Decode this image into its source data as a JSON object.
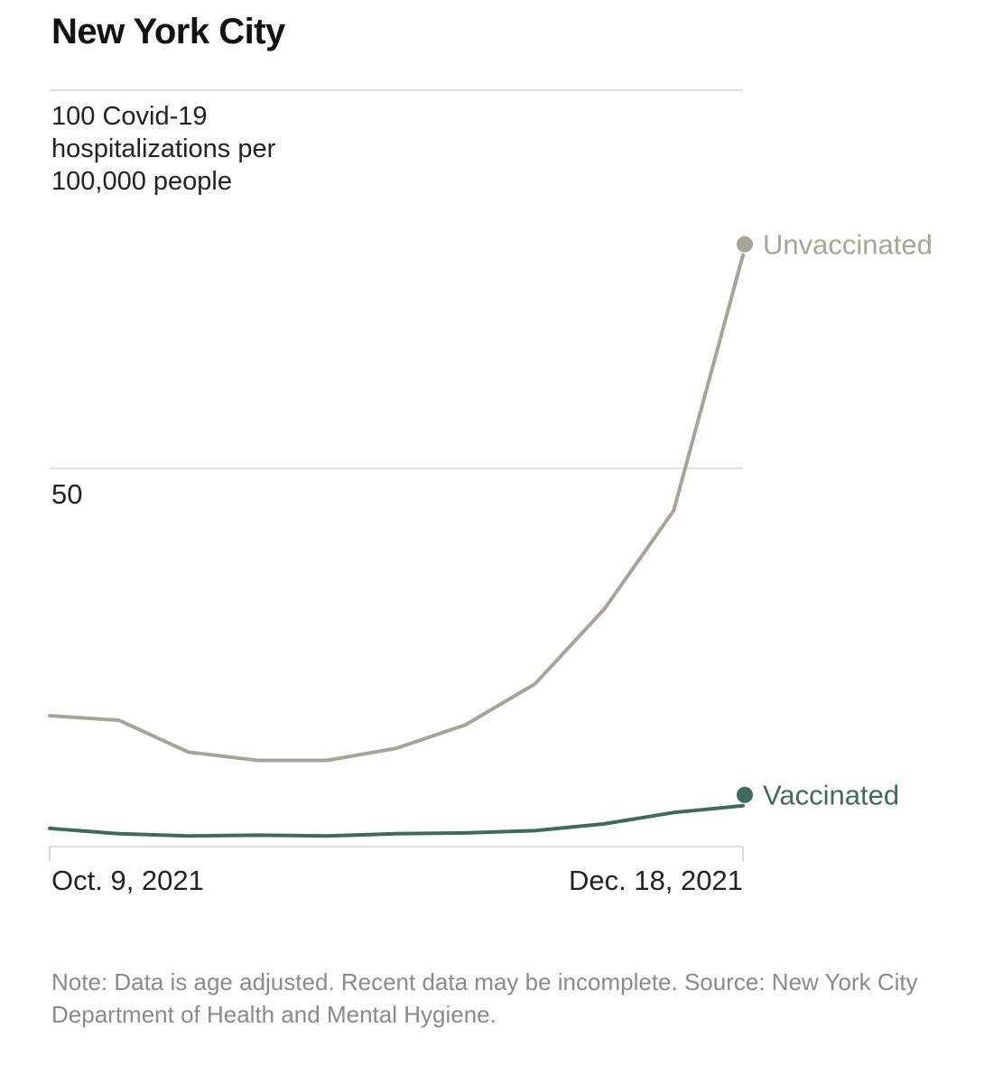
{
  "chart_data": {
    "type": "line",
    "title": "New York City",
    "ylabel_lines": [
      "100 Covid-19",
      "hospitalizations per",
      "100,000 people"
    ],
    "y_ticks": [
      50,
      100
    ],
    "y_tick_labels": [
      "50",
      ""
    ],
    "ylim": [
      0,
      100
    ],
    "x_tick_labels": [
      "Oct. 9, 2021",
      "Dec. 18, 2021"
    ],
    "x": [
      "2021-10-09",
      "2021-10-16",
      "2021-10-23",
      "2021-10-30",
      "2021-11-06",
      "2021-11-13",
      "2021-11-20",
      "2021-11-27",
      "2021-12-04",
      "2021-12-11",
      "2021-12-18"
    ],
    "series": [
      {
        "name": "Unvaccinated",
        "color": "#a8a495",
        "values": [
          17.3,
          16.7,
          12.5,
          11.4,
          11.4,
          13.0,
          16.1,
          21.5,
          31.4,
          44.4,
          78.2
        ]
      },
      {
        "name": "Vaccinated",
        "color": "#3d6b60",
        "values": [
          2.4,
          1.7,
          1.4,
          1.5,
          1.4,
          1.7,
          1.8,
          2.1,
          3.0,
          4.5,
          5.4
        ]
      }
    ],
    "grid": true,
    "legend": "end-of-line labels"
  },
  "note": "Note: Data is age adjusted. Recent data may be incomplete. Source: New York City Department of Health and Mental Hygiene."
}
